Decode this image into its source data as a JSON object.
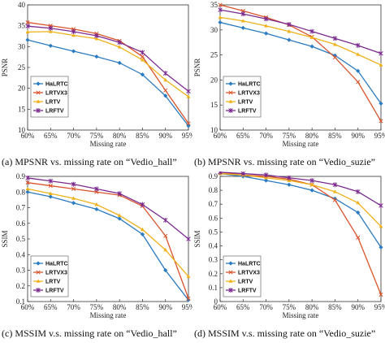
{
  "colors": {
    "HaLRTC": "#2b7bc0",
    "LRTVX3": "#d9542b",
    "LRTV": "#efb11a",
    "LRFTV": "#7a2a8e"
  },
  "chart_data": [
    {
      "type": "line",
      "caption": "(a) MPSNR vs. missing rate on “Vedio_hall”",
      "xlabel": "Missing rate",
      "ylabel": "PSNR",
      "categories": [
        "60%",
        "65%",
        "70%",
        "75%",
        "80%",
        "85%",
        "90%",
        "95%"
      ],
      "yticks": [
        10,
        15,
        20,
        25,
        30,
        35,
        40
      ],
      "ylim": [
        10,
        40
      ],
      "legend": "left",
      "series": [
        {
          "name": "HaLRTC",
          "values": [
            31.6,
            30.2,
            28.9,
            27.6,
            26.1,
            23.3,
            18.2,
            11.0
          ]
        },
        {
          "name": "LRTVX3",
          "values": [
            35.8,
            35.0,
            34.2,
            33.1,
            31.4,
            27.6,
            19.5,
            11.6
          ]
        },
        {
          "name": "LRTV",
          "values": [
            33.5,
            33.6,
            32.7,
            31.9,
            29.9,
            26.8,
            22.0,
            18.0
          ]
        },
        {
          "name": "LRFTV",
          "values": [
            34.9,
            34.4,
            33.6,
            32.6,
            31.0,
            28.6,
            23.6,
            19.3
          ]
        }
      ]
    },
    {
      "type": "line",
      "caption": "(b) MPSNR vs. missing rate on “Vedio_suzie”",
      "xlabel": "Missing rate",
      "ylabel": "PSNR",
      "categories": [
        "60%",
        "65%",
        "70%",
        "75%",
        "80%",
        "85%",
        "90%",
        "95%"
      ],
      "yticks": [
        10,
        15,
        20,
        25,
        30,
        35
      ],
      "ylim": [
        10,
        35
      ],
      "legend": "left",
      "series": [
        {
          "name": "HaLRTC",
          "values": [
            31.5,
            30.4,
            29.3,
            28.0,
            26.7,
            24.9,
            21.8,
            15.3
          ]
        },
        {
          "name": "LRTVX3",
          "values": [
            35.0,
            33.8,
            32.5,
            31.0,
            28.6,
            24.5,
            19.6,
            11.8
          ]
        },
        {
          "name": "LRTV",
          "values": [
            32.5,
            31.8,
            30.8,
            29.7,
            28.5,
            27.1,
            25.1,
            23.0
          ]
        },
        {
          "name": "LRFTV",
          "values": [
            34.0,
            33.2,
            32.2,
            31.1,
            29.7,
            28.3,
            26.9,
            25.3
          ]
        }
      ]
    },
    {
      "type": "line",
      "caption": "(c) MSSIM v.s. missing rate on “Vedio_hall”",
      "xlabel": "Missing rate",
      "ylabel": "SSIM",
      "categories": [
        "60%",
        "65%",
        "70%",
        "75%",
        "80%",
        "85%",
        "90%",
        "95%"
      ],
      "yticks": [
        0.1,
        0.2,
        0.3,
        0.4,
        0.5,
        0.6,
        0.7,
        0.8,
        0.9
      ],
      "ylim": [
        0.1,
        0.9
      ],
      "legend": "bottom-left",
      "series": [
        {
          "name": "HaLRTC",
          "values": [
            0.8,
            0.77,
            0.73,
            0.69,
            0.63,
            0.53,
            0.3,
            0.11
          ]
        },
        {
          "name": "LRTVX3",
          "values": [
            0.86,
            0.84,
            0.82,
            0.8,
            0.78,
            0.71,
            0.52,
            0.12
          ]
        },
        {
          "name": "LRTV",
          "values": [
            0.82,
            0.79,
            0.76,
            0.72,
            0.65,
            0.56,
            0.43,
            0.26
          ]
        },
        {
          "name": "LRFTV",
          "values": [
            0.89,
            0.87,
            0.85,
            0.82,
            0.79,
            0.72,
            0.62,
            0.5
          ]
        }
      ]
    },
    {
      "type": "line",
      "caption": "(d) MSSIM v.s. missing rate on “Vedio_suzie”",
      "xlabel": "Missing rate",
      "ylabel": "SSIM",
      "categories": [
        "60%",
        "65%",
        "70%",
        "75%",
        "80%",
        "85%",
        "90%",
        "95%"
      ],
      "yticks": [
        0,
        0.1,
        0.2,
        0.3,
        0.4,
        0.5,
        0.6,
        0.7,
        0.8,
        0.9
      ],
      "ylim": [
        0,
        0.9
      ],
      "legend": "bottom-left",
      "series": [
        {
          "name": "HaLRTC",
          "values": [
            0.92,
            0.9,
            0.87,
            0.84,
            0.8,
            0.74,
            0.64,
            0.39
          ]
        },
        {
          "name": "LRTVX3",
          "values": [
            0.93,
            0.91,
            0.9,
            0.88,
            0.84,
            0.73,
            0.46,
            0.05
          ]
        },
        {
          "name": "LRTV",
          "values": [
            0.92,
            0.91,
            0.89,
            0.87,
            0.84,
            0.79,
            0.71,
            0.54
          ]
        },
        {
          "name": "LRFTV",
          "values": [
            0.93,
            0.92,
            0.91,
            0.89,
            0.87,
            0.84,
            0.79,
            0.69
          ]
        }
      ]
    }
  ]
}
